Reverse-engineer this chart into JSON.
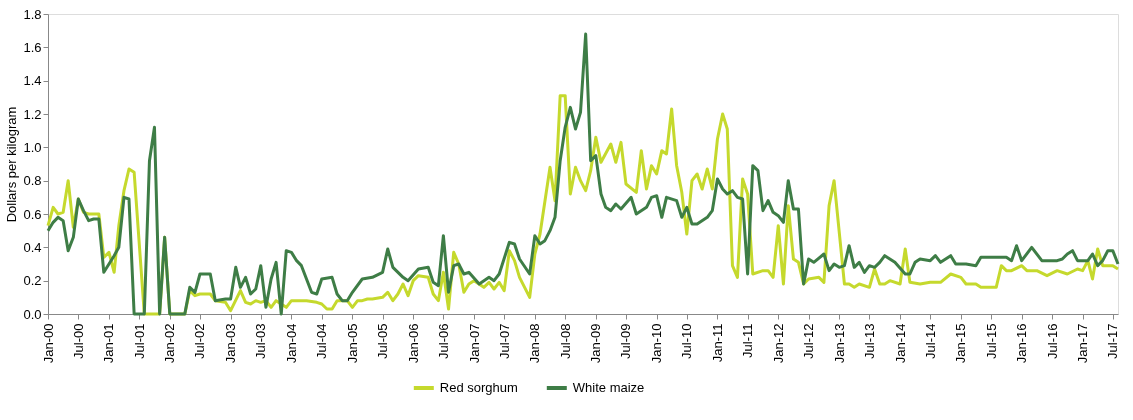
{
  "chart_data": {
    "type": "line",
    "ylabel": "Dollars per kilogram",
    "ylim": [
      0,
      1.8
    ],
    "yticks": [
      {
        "value": 0,
        "label": "0.0"
      },
      0.2,
      0.4,
      0.6,
      0.8,
      {
        "value": 1,
        "label": "1.0"
      },
      1.2,
      1.4,
      1.6,
      1.8
    ],
    "xlim": [
      "2000-01",
      "2017-08"
    ],
    "xticks": [
      {
        "value": "2000-01",
        "label": "Jan-00"
      },
      {
        "value": "2000-07",
        "label": "Jul-00"
      },
      {
        "value": "2001-01",
        "label": "Jan-01"
      },
      {
        "value": "2001-07",
        "label": "Jul-01"
      },
      {
        "value": "2002-01",
        "label": "Jan-02"
      },
      {
        "value": "2002-07",
        "label": "Jul-02"
      },
      {
        "value": "2003-01",
        "label": "Jan-03"
      },
      {
        "value": "2003-07",
        "label": "Jul-03"
      },
      {
        "value": "2004-01",
        "label": "Jan-04"
      },
      {
        "value": "2004-07",
        "label": "Jul-04"
      },
      {
        "value": "2005-01",
        "label": "Jan-05"
      },
      {
        "value": "2005-07",
        "label": "Jul-05"
      },
      {
        "value": "2006-01",
        "label": "Jan-06"
      },
      {
        "value": "2006-07",
        "label": "Jul-06"
      },
      {
        "value": "2007-01",
        "label": "Jan-07"
      },
      {
        "value": "2007-07",
        "label": "Jul-07"
      },
      {
        "value": "2008-01",
        "label": "Jan-08"
      },
      {
        "value": "2008-07",
        "label": "Jul-08"
      },
      {
        "value": "2009-01",
        "label": "Jan-09"
      },
      {
        "value": "2009-07",
        "label": "Jul-09"
      },
      {
        "value": "2010-01",
        "label": "Jan-10"
      },
      {
        "value": "2010-07",
        "label": "Jul-10"
      },
      {
        "value": "2011-01",
        "label": "Jan-11"
      },
      {
        "value": "2011-07",
        "label": "Jul-11"
      },
      {
        "value": "2012-01",
        "label": "Jan-12"
      },
      {
        "value": "2012-07",
        "label": "Jul-12"
      },
      {
        "value": "2013-01",
        "label": "Jan-13"
      },
      {
        "value": "2013-07",
        "label": "Jul-13"
      },
      {
        "value": "2014-01",
        "label": "Jan-14"
      },
      {
        "value": "2014-07",
        "label": "Jul-14"
      },
      {
        "value": "2015-01",
        "label": "Jan-15"
      },
      {
        "value": "2015-07",
        "label": "Jul-15"
      },
      {
        "value": "2016-01",
        "label": "Jan-16"
      },
      {
        "value": "2016-07",
        "label": "Jul-16"
      },
      {
        "value": "2017-01",
        "label": "Jan-17"
      },
      {
        "value": "2017-07",
        "label": "Jul-17"
      }
    ],
    "grid": false,
    "legend": "bottom",
    "line_style": "solid",
    "series": [
      {
        "name": "Red sorghum",
        "color": "#c5d92d",
        "x": [
          "2000-01",
          "2000-02",
          "2000-03",
          "2000-04",
          "2000-05",
          "2000-06",
          "2000-07",
          "2000-08",
          "2000-09",
          "2000-11",
          "2000-12",
          "2001-01",
          "2001-02",
          "2001-03",
          "2001-04",
          "2001-05",
          "2001-06",
          "2001-08",
          "2001-11",
          "2001-12",
          "2002-01",
          "2002-04",
          "2002-05",
          "2002-06",
          "2002-07",
          "2002-09",
          "2002-10",
          "2002-12",
          "2003-01",
          "2003-03",
          "2003-04",
          "2003-05",
          "2003-06",
          "2003-07",
          "2003-08",
          "2003-09",
          "2003-10",
          "2003-12",
          "2004-01",
          "2004-04",
          "2004-06",
          "2004-07",
          "2004-08",
          "2004-09",
          "2004-10",
          "2004-12",
          "2005-01",
          "2005-02",
          "2005-03",
          "2005-04",
          "2005-05",
          "2005-07",
          "2005-08",
          "2005-09",
          "2005-10",
          "2005-11",
          "2005-12",
          "2006-01",
          "2006-02",
          "2006-04",
          "2006-05",
          "2006-06",
          "2006-07",
          "2006-08",
          "2006-09",
          "2006-10",
          "2006-11",
          "2006-12",
          "2007-01",
          "2007-03",
          "2007-04",
          "2007-05",
          "2007-06",
          "2007-07",
          "2007-08",
          "2007-09",
          "2007-10",
          "2007-12",
          "2008-01",
          "2008-02",
          "2008-04",
          "2008-05",
          "2008-06",
          "2008-07",
          "2008-08",
          "2008-09",
          "2008-10",
          "2008-11",
          "2008-12",
          "2009-01",
          "2009-02",
          "2009-04",
          "2009-05",
          "2009-06",
          "2009-07",
          "2009-09",
          "2009-10",
          "2009-11",
          "2009-12",
          "2010-01",
          "2010-02",
          "2010-03",
          "2010-04",
          "2010-05",
          "2010-06",
          "2010-07",
          "2010-08",
          "2010-09",
          "2010-10",
          "2010-11",
          "2010-12",
          "2011-01",
          "2011-02",
          "2011-03",
          "2011-04",
          "2011-05",
          "2011-06",
          "2011-07",
          "2011-08",
          "2011-10",
          "2011-11",
          "2011-12",
          "2012-01",
          "2012-02",
          "2012-03",
          "2012-04",
          "2012-05",
          "2012-06",
          "2012-07",
          "2012-09",
          "2012-10",
          "2012-11",
          "2012-12",
          "2013-02",
          "2013-03",
          "2013-04",
          "2013-05",
          "2013-07",
          "2013-08",
          "2013-09",
          "2013-10",
          "2013-11",
          "2014-01",
          "2014-02",
          "2014-03",
          "2014-05",
          "2014-07",
          "2014-09",
          "2014-11",
          "2015-01",
          "2015-02",
          "2015-04",
          "2015-05",
          "2015-08",
          "2015-09",
          "2015-10",
          "2015-11",
          "2016-01",
          "2016-02",
          "2016-04",
          "2016-06",
          "2016-08",
          "2016-10",
          "2016-12",
          "2017-01",
          "2017-02",
          "2017-03",
          "2017-04",
          "2017-05",
          "2017-07",
          "2017-08"
        ],
        "values": [
          0.53,
          0.64,
          0.6,
          0.61,
          0.8,
          0.52,
          0.69,
          0.61,
          0.6,
          0.6,
          0.34,
          0.37,
          0.25,
          0.53,
          0.74,
          0.87,
          0.85,
          0.0,
          0.0,
          0.46,
          0.0,
          0.0,
          0.14,
          0.11,
          0.12,
          0.12,
          0.08,
          0.07,
          0.02,
          0.14,
          0.07,
          0.06,
          0.08,
          0.07,
          0.08,
          0.04,
          0.08,
          0.04,
          0.08,
          0.08,
          0.07,
          0.06,
          0.03,
          0.03,
          0.08,
          0.08,
          0.04,
          0.08,
          0.08,
          0.09,
          0.09,
          0.1,
          0.13,
          0.08,
          0.12,
          0.18,
          0.11,
          0.2,
          0.23,
          0.22,
          0.12,
          0.08,
          0.25,
          0.03,
          0.37,
          0.3,
          0.13,
          0.18,
          0.2,
          0.16,
          0.19,
          0.15,
          0.19,
          0.14,
          0.38,
          0.32,
          0.22,
          0.1,
          0.36,
          0.48,
          0.88,
          0.68,
          1.31,
          1.31,
          0.72,
          0.88,
          0.8,
          0.74,
          0.86,
          1.06,
          0.91,
          1.02,
          0.91,
          1.03,
          0.78,
          0.73,
          0.98,
          0.75,
          0.89,
          0.84,
          0.98,
          0.96,
          1.23,
          0.89,
          0.73,
          0.48,
          0.8,
          0.84,
          0.75,
          0.87,
          0.75,
          1.05,
          1.2,
          1.11,
          0.29,
          0.22,
          0.81,
          0.72,
          0.24,
          0.26,
          0.26,
          0.22,
          0.53,
          0.18,
          0.65,
          0.33,
          0.31,
          0.18,
          0.21,
          0.22,
          0.19,
          0.65,
          0.8,
          0.18,
          0.18,
          0.16,
          0.18,
          0.16,
          0.27,
          0.18,
          0.18,
          0.2,
          0.18,
          0.39,
          0.19,
          0.18,
          0.19,
          0.19,
          0.24,
          0.22,
          0.18,
          0.18,
          0.16,
          0.16,
          0.29,
          0.26,
          0.26,
          0.29,
          0.26,
          0.26,
          0.23,
          0.26,
          0.24,
          0.27,
          0.26,
          0.32,
          0.21,
          0.39,
          0.29,
          0.29,
          0.27
        ]
      },
      {
        "name": "White maize",
        "color": "#3e7d46",
        "x": [
          "2000-01",
          "2000-02",
          "2000-03",
          "2000-04",
          "2000-05",
          "2000-06",
          "2000-07",
          "2000-08",
          "2000-09",
          "2000-10",
          "2000-11",
          "2000-12",
          "2001-01",
          "2001-02",
          "2001-03",
          "2001-04",
          "2001-05",
          "2001-06",
          "2001-07",
          "2001-08",
          "2001-09",
          "2001-10",
          "2001-11",
          "2001-12",
          "2002-01",
          "2002-04",
          "2002-05",
          "2002-06",
          "2002-07",
          "2002-09",
          "2002-10",
          "2002-12",
          "2003-01",
          "2003-02",
          "2003-03",
          "2003-04",
          "2003-05",
          "2003-06",
          "2003-07",
          "2003-08",
          "2003-09",
          "2003-10",
          "2003-11",
          "2003-12",
          "2004-01",
          "2004-02",
          "2004-03",
          "2004-05",
          "2004-06",
          "2004-07",
          "2004-09",
          "2004-10",
          "2004-11",
          "2004-12",
          "2005-01",
          "2005-03",
          "2005-05",
          "2005-07",
          "2005-08",
          "2005-09",
          "2005-11",
          "2005-12",
          "2006-02",
          "2006-04",
          "2006-05",
          "2006-06",
          "2006-07",
          "2006-08",
          "2006-09",
          "2006-10",
          "2006-11",
          "2006-12",
          "2007-02",
          "2007-04",
          "2007-05",
          "2007-06",
          "2007-08",
          "2007-09",
          "2007-10",
          "2007-12",
          "2008-01",
          "2008-02",
          "2008-03",
          "2008-04",
          "2008-05",
          "2008-06",
          "2008-07",
          "2008-08",
          "2008-09",
          "2008-10",
          "2008-11",
          "2008-12",
          "2009-01",
          "2009-02",
          "2009-03",
          "2009-04",
          "2009-05",
          "2009-06",
          "2009-08",
          "2009-09",
          "2009-11",
          "2009-12",
          "2010-01",
          "2010-02",
          "2010-03",
          "2010-05",
          "2010-06",
          "2010-07",
          "2010-08",
          "2010-09",
          "2010-11",
          "2010-12",
          "2011-01",
          "2011-02",
          "2011-03",
          "2011-04",
          "2011-05",
          "2011-06",
          "2011-07",
          "2011-08",
          "2011-09",
          "2011-10",
          "2011-11",
          "2011-12",
          "2012-01",
          "2012-02",
          "2012-03",
          "2012-04",
          "2012-05",
          "2012-06",
          "2012-07",
          "2012-08",
          "2012-10",
          "2012-11",
          "2012-12",
          "2013-01",
          "2013-02",
          "2013-03",
          "2013-04",
          "2013-05",
          "2013-06",
          "2013-07",
          "2013-08",
          "2013-09",
          "2013-10",
          "2013-12",
          "2014-02",
          "2014-03",
          "2014-04",
          "2014-05",
          "2014-07",
          "2014-08",
          "2014-09",
          "2014-11",
          "2014-12",
          "2015-02",
          "2015-04",
          "2015-05",
          "2015-10",
          "2015-11",
          "2015-12",
          "2016-01",
          "2016-03",
          "2016-05",
          "2016-08",
          "2016-09",
          "2016-10",
          "2016-11",
          "2016-12",
          "2017-02",
          "2017-03",
          "2017-04",
          "2017-05",
          "2017-06",
          "2017-07",
          "2017-08"
        ],
        "values": [
          0.5,
          0.55,
          0.58,
          0.56,
          0.38,
          0.46,
          0.69,
          0.62,
          0.56,
          0.57,
          0.57,
          0.25,
          0.3,
          0.35,
          0.4,
          0.7,
          0.69,
          0.0,
          0.0,
          0.0,
          0.92,
          1.12,
          0.0,
          0.46,
          0.0,
          0.0,
          0.16,
          0.13,
          0.24,
          0.24,
          0.08,
          0.09,
          0.09,
          0.28,
          0.16,
          0.22,
          0.12,
          0.15,
          0.29,
          0.04,
          0.21,
          0.31,
          0.0,
          0.38,
          0.37,
          0.32,
          0.29,
          0.13,
          0.12,
          0.21,
          0.22,
          0.12,
          0.08,
          0.08,
          0.13,
          0.21,
          0.22,
          0.25,
          0.39,
          0.28,
          0.22,
          0.2,
          0.27,
          0.28,
          0.19,
          0.17,
          0.47,
          0.13,
          0.29,
          0.3,
          0.24,
          0.25,
          0.18,
          0.22,
          0.2,
          0.24,
          0.43,
          0.42,
          0.33,
          0.24,
          0.47,
          0.42,
          0.44,
          0.5,
          0.58,
          0.92,
          1.12,
          1.24,
          1.11,
          1.21,
          1.68,
          0.92,
          0.95,
          0.72,
          0.64,
          0.62,
          0.66,
          0.63,
          0.7,
          0.6,
          0.64,
          0.7,
          0.71,
          0.58,
          0.7,
          0.68,
          0.58,
          0.64,
          0.54,
          0.54,
          0.58,
          0.62,
          0.81,
          0.75,
          0.72,
          0.74,
          0.7,
          0.69,
          0.24,
          0.89,
          0.86,
          0.62,
          0.68,
          0.61,
          0.59,
          0.55,
          0.8,
          0.63,
          0.63,
          0.18,
          0.33,
          0.31,
          0.36,
          0.26,
          0.3,
          0.28,
          0.29,
          0.41,
          0.28,
          0.31,
          0.25,
          0.29,
          0.28,
          0.31,
          0.35,
          0.31,
          0.24,
          0.24,
          0.31,
          0.33,
          0.32,
          0.35,
          0.31,
          0.35,
          0.3,
          0.3,
          0.29,
          0.34,
          0.34,
          0.32,
          0.41,
          0.32,
          0.4,
          0.32,
          0.32,
          0.33,
          0.36,
          0.38,
          0.32,
          0.32,
          0.36,
          0.29,
          0.32,
          0.38,
          0.38,
          0.3
        ]
      }
    ]
  }
}
